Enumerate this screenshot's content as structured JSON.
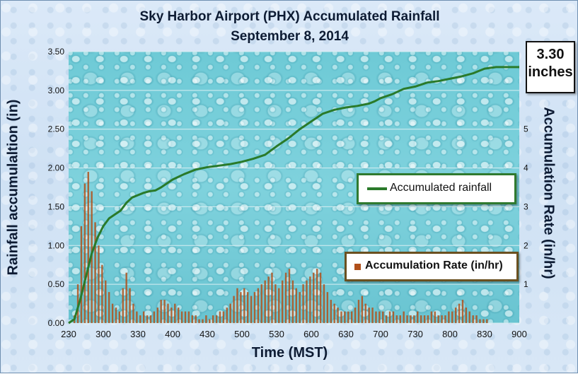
{
  "chart_data": {
    "type": "line+bar",
    "title": "Sky Harbor Airport (PHX) Accumulated Rainfall",
    "subtitle": "September 8, 2014",
    "xlabel": "Time (MST)",
    "ylabel": "Rainfall accumulaltion (in)",
    "y2label": "Accumulation Rate (in/hr)",
    "x_ticks": [
      "230",
      "300",
      "330",
      "400",
      "430",
      "500",
      "530",
      "600",
      "630",
      "700",
      "730",
      "800",
      "830",
      "900"
    ],
    "y_ticks": [
      "0.00",
      "0.50",
      "1.00",
      "1.50",
      "2.00",
      "2.50",
      "3.00",
      "3.50"
    ],
    "y2_ticks": [
      "1",
      "2",
      "3",
      "4",
      "5"
    ],
    "ylim": [
      0,
      3.5
    ],
    "y2lim": [
      0,
      7
    ],
    "xlim_minutes_after_230": [
      0,
      390
    ],
    "grid": "horizontal",
    "total_label": {
      "value": "3.30",
      "unit": "inches"
    },
    "series": [
      {
        "name": "Accumulated rainfall",
        "kind": "line",
        "axis": "left",
        "color": "#2a7a2a",
        "x_minutes_after_230": [
          0,
          5,
          10,
          15,
          20,
          25,
          30,
          35,
          40,
          45,
          50,
          55,
          60,
          65,
          70,
          75,
          80,
          90,
          100,
          110,
          120,
          130,
          140,
          150,
          160,
          170,
          180,
          190,
          200,
          210,
          220,
          230,
          240,
          250,
          260,
          265,
          270,
          280,
          290,
          300,
          310,
          320,
          330,
          340,
          350,
          355,
          360,
          370,
          380,
          390
        ],
        "values": [
          0.0,
          0.05,
          0.3,
          0.6,
          0.9,
          1.1,
          1.25,
          1.35,
          1.4,
          1.45,
          1.55,
          1.62,
          1.65,
          1.68,
          1.7,
          1.71,
          1.75,
          1.85,
          1.92,
          1.98,
          2.01,
          2.03,
          2.05,
          2.08,
          2.12,
          2.17,
          2.28,
          2.38,
          2.5,
          2.6,
          2.7,
          2.75,
          2.78,
          2.8,
          2.83,
          2.86,
          2.9,
          2.95,
          3.02,
          3.05,
          3.1,
          3.12,
          3.15,
          3.18,
          3.22,
          3.25,
          3.28,
          3.3,
          3.3,
          3.3
        ]
      },
      {
        "name": "Accumulation Rate (in/hr)",
        "kind": "bar",
        "axis": "right",
        "color": "#b0501a",
        "x_minutes_after_230": [
          5,
          8,
          11,
          14,
          17,
          20,
          23,
          26,
          29,
          32,
          35,
          38,
          41,
          44,
          47,
          50,
          53,
          56,
          59,
          62,
          65,
          68,
          71,
          74,
          77,
          80,
          83,
          86,
          89,
          92,
          95,
          98,
          101,
          104,
          107,
          110,
          113,
          116,
          119,
          122,
          125,
          128,
          131,
          134,
          137,
          140,
          143,
          146,
          149,
          152,
          155,
          158,
          161,
          164,
          167,
          170,
          173,
          176,
          179,
          182,
          185,
          188,
          191,
          194,
          197,
          200,
          203,
          206,
          209,
          212,
          215,
          218,
          221,
          224,
          227,
          230,
          233,
          236,
          239,
          242,
          245,
          248,
          251,
          254,
          257,
          260,
          263,
          266,
          269,
          272,
          275,
          278,
          281,
          284,
          287,
          290,
          293,
          296,
          299,
          302,
          305,
          308,
          311,
          314,
          317,
          320,
          323,
          326,
          329,
          332,
          335,
          338,
          341,
          344,
          347,
          350,
          353,
          356,
          359,
          362
        ],
        "values": [
          0.2,
          1.0,
          2.5,
          3.6,
          3.9,
          3.4,
          2.6,
          2.0,
          1.5,
          1.1,
          0.8,
          0.5,
          0.4,
          0.3,
          0.9,
          1.3,
          0.9,
          0.5,
          0.3,
          0.2,
          0.3,
          0.2,
          0.2,
          0.3,
          0.4,
          0.6,
          0.6,
          0.5,
          0.4,
          0.5,
          0.4,
          0.3,
          0.3,
          0.3,
          0.2,
          0.2,
          0.1,
          0.1,
          0.2,
          0.1,
          0.2,
          0.2,
          0.3,
          0.3,
          0.4,
          0.5,
          0.7,
          0.9,
          0.8,
          0.9,
          0.8,
          0.7,
          0.8,
          0.9,
          1.0,
          1.1,
          1.2,
          1.3,
          1.0,
          0.9,
          1.1,
          1.3,
          1.4,
          1.1,
          0.9,
          0.8,
          1.0,
          1.1,
          1.2,
          1.3,
          1.4,
          1.3,
          1.0,
          0.8,
          0.6,
          0.5,
          0.4,
          0.3,
          0.3,
          0.3,
          0.3,
          0.4,
          0.6,
          0.7,
          0.5,
          0.4,
          0.4,
          0.3,
          0.3,
          0.3,
          0.2,
          0.3,
          0.3,
          0.2,
          0.2,
          0.3,
          0.2,
          0.2,
          0.2,
          0.3,
          0.2,
          0.2,
          0.2,
          0.3,
          0.3,
          0.2,
          0.2,
          0.2,
          0.3,
          0.3,
          0.4,
          0.5,
          0.6,
          0.4,
          0.3,
          0.2,
          0.2,
          0.1,
          0.1,
          0.1
        ]
      }
    ]
  }
}
